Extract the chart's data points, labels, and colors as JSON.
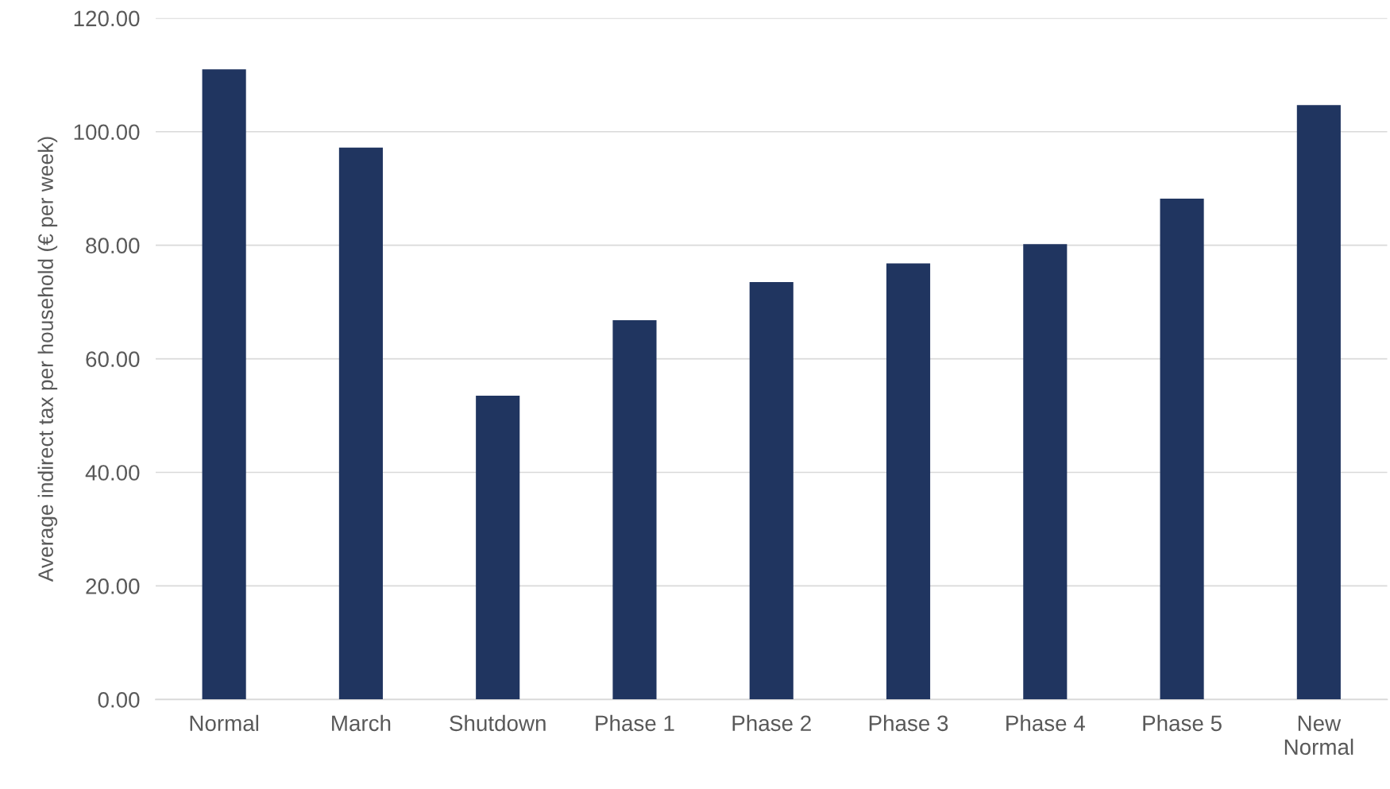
{
  "chart_data": {
    "type": "bar",
    "ylabel": "Average indirect tax per household (€ per week)",
    "categories": [
      "Normal",
      "March",
      "Shutdown",
      "Phase 1",
      "Phase 2",
      "Phase 3",
      "Phase 4",
      "Phase 5",
      "New\nNormal"
    ],
    "values": [
      111.0,
      97.2,
      53.5,
      66.8,
      73.5,
      76.8,
      80.2,
      88.2,
      104.7
    ],
    "color": "#203560",
    "ylim": [
      0,
      120
    ],
    "yticks": [
      {
        "value": 0,
        "label": "0.00"
      },
      {
        "value": 20,
        "label": "20.00"
      },
      {
        "value": 40,
        "label": "40.00"
      },
      {
        "value": 60,
        "label": "60.00"
      },
      {
        "value": 80,
        "label": "80.00"
      },
      {
        "value": 100,
        "label": "100.00"
      },
      {
        "value": 120,
        "label": "120.00"
      }
    ],
    "grid": "y"
  }
}
